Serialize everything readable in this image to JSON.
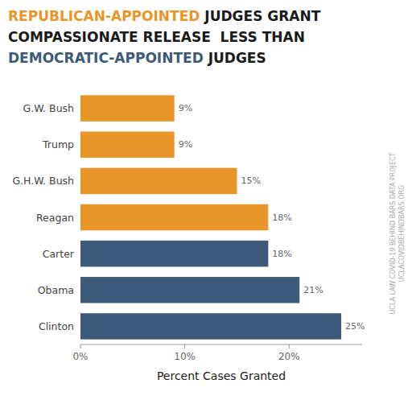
{
  "chart_data": {
    "type": "bar",
    "orientation": "horizontal",
    "title": [
      [
        {
          "text": "REPUBLICAN-APPOINTED",
          "color": "#E8952A"
        },
        {
          "text": " JUDGES GRANT",
          "color": "#1a1a1a"
        }
      ],
      [
        {
          "text": "COMPASSIONATE RELEASE  LESS THAN",
          "color": "#1a1a1a"
        }
      ],
      [
        {
          "text": "DEMOCRATIC-APPOINTED",
          "color": "#3D5A7A"
        },
        {
          "text": " JUDGES",
          "color": "#1a1a1a"
        }
      ]
    ],
    "x_label": "Percent Cases Granted",
    "categories": [
      "G.W. Bush",
      "Trump",
      "G.H.W. Bush",
      "Reagan",
      "Carter",
      "Obama",
      "Clinton"
    ],
    "values": [
      9,
      9,
      15,
      18,
      18,
      21,
      25
    ],
    "value_labels": [
      "9%",
      "9%",
      "15%",
      "18%",
      "18%",
      "21%",
      "25%"
    ],
    "data_labels": true,
    "colors": [
      "#E8952A",
      "#E8952A",
      "#E8952A",
      "#E8952A",
      "#3D5A7A",
      "#3D5A7A",
      "#3D5A7A"
    ],
    "xlim": [
      0,
      27
    ],
    "xticks": [
      {
        "value": 0,
        "label": "0%"
      },
      {
        "value": 10,
        "label": "10%"
      },
      {
        "value": 20,
        "label": "20%"
      }
    ],
    "grid": false,
    "annotations": [
      "UCLA LAW COVID-19 BEHIND BARS DATA PROJECT",
      "UCLACOVIDBEHINDBARS.ORG"
    ]
  }
}
